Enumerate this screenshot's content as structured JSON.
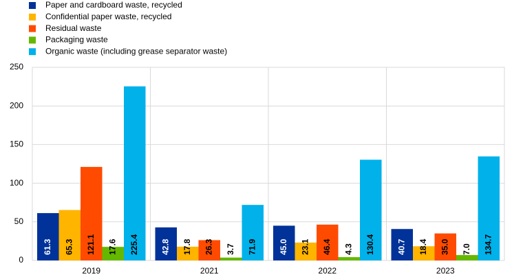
{
  "chart_data": {
    "type": "bar",
    "categories": [
      "2019",
      "2021",
      "2022",
      "2023"
    ],
    "series": [
      {
        "name": "Paper and cardboard waste, recycled",
        "color": "#003299",
        "values": [
          61.3,
          42.8,
          45.0,
          40.7
        ],
        "value_labels": [
          "61.3",
          "42.8",
          "45.0",
          "40.7"
        ]
      },
      {
        "name": "Confidential paper waste, recycled",
        "color": "#ffb400",
        "values": [
          65.3,
          17.8,
          23.1,
          18.4
        ],
        "value_labels": [
          "65.3",
          "17.8",
          "23.1",
          "18.4"
        ]
      },
      {
        "name": "Residual waste",
        "color": "#ff4b00",
        "values": [
          121.1,
          26.3,
          46.4,
          35.0
        ],
        "value_labels": [
          "121.1",
          "26.3",
          "46.4",
          "35.0"
        ]
      },
      {
        "name": "Packaging waste",
        "color": "#65b800",
        "values": [
          17.6,
          3.7,
          4.3,
          7.0
        ],
        "value_labels": [
          "17.6",
          "3.7",
          "4.3",
          "7.0"
        ]
      },
      {
        "name": "Organic waste (including grease separator waste)",
        "color": "#00b1ea",
        "values": [
          225.4,
          71.9,
          130.4,
          134.7
        ],
        "value_labels": [
          "225.4",
          "71.9",
          "130.4",
          "134.7"
        ]
      }
    ],
    "ylim": [
      0,
      250
    ],
    "yticks": [
      0,
      50,
      100,
      150,
      200,
      250
    ],
    "grid": true,
    "legend": "top-left"
  }
}
